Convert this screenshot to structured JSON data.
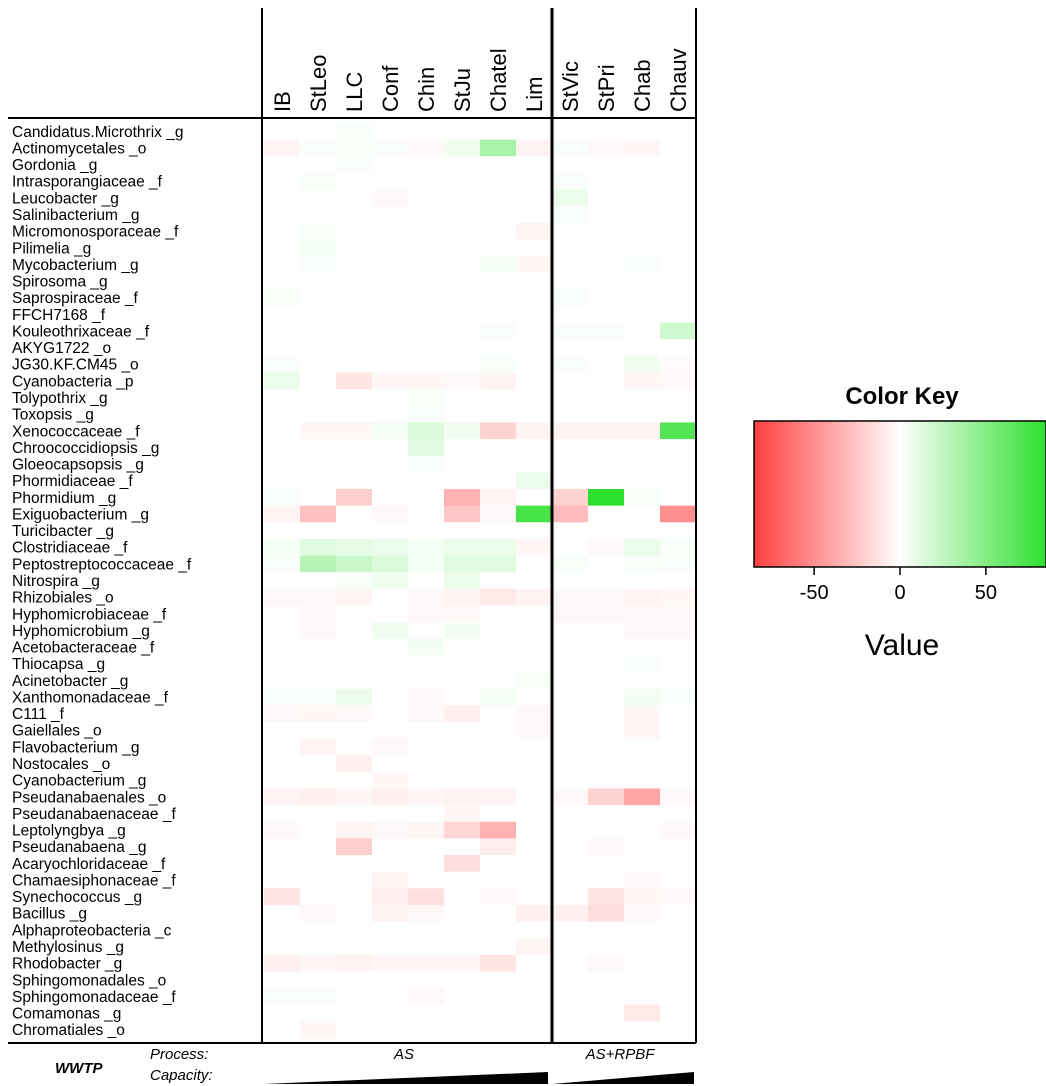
{
  "chart_data": {
    "type": "heatmap",
    "columns": [
      "IB",
      "StLeo",
      "LLC",
      "Conf",
      "Chin",
      "StJu",
      "Chatel",
      "Lim",
      "StVic",
      "StPri",
      "Chab",
      "Chauv"
    ],
    "rows": [
      "Candidatus.Microthrix _g",
      "Actinomycetales _o",
      "Gordonia _g",
      "Intrasporangiaceae _f",
      "Leucobacter _g",
      "Salinibacterium _g",
      "Micromonosporaceae _f",
      "Pilimelia _g",
      "Mycobacterium _g",
      "Spirosoma _g",
      "Saprospiraceae _f",
      "FFCH7168 _f",
      "Kouleothrixaceae _f",
      "AKYG1722 _o",
      "JG30.KF.CM45 _o",
      "Cyanobacteria _p",
      "Tolypothrix _g",
      "Toxopsis _g",
      "Xenococcaceae _f",
      "Chroococcidiopsis _g",
      "Gloeocapsopsis _g",
      "Phormidiaceae _f",
      "Phormidium _g",
      "Exiguobacterium _g",
      "Turicibacter _g",
      "Clostridiaceae _f",
      "Peptostreptococcaceae _f",
      "Nitrospira _g",
      "Rhizobiales _o",
      "Hyphomicrobiaceae _f",
      "Hyphomicrobium _g",
      "Acetobacteraceae _f",
      "Thiocapsa _g",
      "Acinetobacter _g",
      "Xanthomonadaceae _f",
      "C111 _f",
      "Gaiellales _o",
      "Flavobacterium _g",
      "Nostocales _o",
      "Cyanobacterium _g",
      "Pseudanabaenales _o",
      "Pseudanabaenaceae _f",
      "Leptolyngbya _g",
      "Pseudanabaena _g",
      "Acaryochloridaceae _f",
      "Chamaesiphonaceae _f",
      "Synechococcus _g",
      "Bacillus _g",
      "Alphaproteobacteria _c",
      "Methylosinus _g",
      "Rhodobacter _g",
      "Sphingomonadales _o",
      "Sphingomonadaceae _f",
      "Comamonas _g",
      "Chromatiales _o"
    ],
    "values": [
      [
        0,
        0,
        3,
        0,
        0,
        0,
        0,
        0,
        0,
        0,
        0,
        0
      ],
      [
        -5,
        2,
        3,
        2,
        -3,
        6,
        35,
        -6,
        2,
        -3,
        -4,
        0
      ],
      [
        0,
        0,
        2,
        0,
        0,
        0,
        0,
        0,
        0,
        0,
        0,
        0
      ],
      [
        0,
        3,
        0,
        0,
        0,
        0,
        0,
        0,
        2,
        0,
        0,
        0
      ],
      [
        0,
        0,
        0,
        -3,
        0,
        0,
        0,
        0,
        8,
        0,
        0,
        0
      ],
      [
        0,
        0,
        0,
        0,
        0,
        0,
        0,
        0,
        2,
        0,
        0,
        0
      ],
      [
        0,
        3,
        0,
        0,
        0,
        0,
        0,
        -5,
        0,
        0,
        0,
        0
      ],
      [
        0,
        4,
        0,
        0,
        0,
        0,
        0,
        0,
        0,
        0,
        0,
        0
      ],
      [
        0,
        2,
        0,
        0,
        0,
        0,
        4,
        -4,
        0,
        0,
        2,
        0
      ],
      [
        0,
        0,
        0,
        0,
        0,
        0,
        0,
        0,
        0,
        0,
        0,
        0
      ],
      [
        3,
        0,
        0,
        0,
        0,
        0,
        0,
        0,
        2,
        0,
        0,
        0
      ],
      [
        0,
        0,
        0,
        0,
        0,
        0,
        0,
        0,
        0,
        0,
        0,
        0
      ],
      [
        0,
        0,
        0,
        0,
        0,
        0,
        2,
        0,
        2,
        2,
        0,
        20
      ],
      [
        0,
        0,
        0,
        0,
        0,
        0,
        0,
        0,
        0,
        0,
        0,
        0
      ],
      [
        2,
        0,
        0,
        0,
        0,
        0,
        3,
        0,
        2,
        0,
        6,
        -2
      ],
      [
        8,
        0,
        -12,
        -4,
        -4,
        -3,
        -6,
        0,
        0,
        0,
        -4,
        -3
      ],
      [
        0,
        0,
        0,
        0,
        3,
        0,
        0,
        0,
        0,
        0,
        0,
        0
      ],
      [
        0,
        0,
        0,
        0,
        2,
        0,
        0,
        0,
        0,
        0,
        0,
        0
      ],
      [
        0,
        -4,
        -4,
        4,
        15,
        6,
        -20,
        -6,
        -6,
        -6,
        -6,
        70
      ],
      [
        0,
        0,
        0,
        0,
        12,
        0,
        0,
        0,
        0,
        0,
        0,
        0
      ],
      [
        0,
        0,
        0,
        0,
        2,
        0,
        0,
        0,
        0,
        0,
        0,
        0
      ],
      [
        0,
        0,
        0,
        0,
        0,
        0,
        0,
        8,
        0,
        0,
        0,
        0
      ],
      [
        2,
        0,
        -22,
        0,
        0,
        -35,
        -5,
        0,
        -20,
        85,
        3,
        0
      ],
      [
        -5,
        -28,
        0,
        -3,
        0,
        -25,
        -3,
        75,
        -30,
        0,
        0,
        -50
      ],
      [
        0,
        0,
        0,
        0,
        0,
        0,
        0,
        0,
        0,
        0,
        0,
        0
      ],
      [
        4,
        12,
        10,
        8,
        4,
        8,
        8,
        -4,
        0,
        -3,
        8,
        3
      ],
      [
        2,
        30,
        22,
        15,
        4,
        12,
        12,
        0,
        3,
        0,
        3,
        2
      ],
      [
        0,
        0,
        3,
        6,
        0,
        8,
        0,
        0,
        0,
        0,
        0,
        0
      ],
      [
        -3,
        -3,
        -5,
        0,
        -3,
        -6,
        -10,
        -6,
        -3,
        -3,
        -5,
        -4
      ],
      [
        0,
        -3,
        0,
        0,
        -3,
        -3,
        0,
        0,
        -3,
        -3,
        -3,
        -3
      ],
      [
        0,
        -3,
        0,
        6,
        0,
        5,
        0,
        0,
        0,
        0,
        -3,
        -3
      ],
      [
        0,
        0,
        0,
        0,
        5,
        0,
        0,
        0,
        0,
        0,
        0,
        0
      ],
      [
        0,
        0,
        0,
        0,
        0,
        0,
        0,
        0,
        0,
        0,
        2,
        0
      ],
      [
        0,
        0,
        0,
        0,
        0,
        0,
        0,
        3,
        0,
        0,
        0,
        0
      ],
      [
        2,
        2,
        8,
        0,
        -3,
        0,
        4,
        0,
        0,
        0,
        5,
        2
      ],
      [
        -3,
        -4,
        -3,
        0,
        -3,
        -7,
        0,
        -3,
        0,
        0,
        -4,
        0
      ],
      [
        0,
        0,
        0,
        0,
        0,
        0,
        0,
        -3,
        0,
        0,
        -4,
        0
      ],
      [
        0,
        -5,
        0,
        -3,
        0,
        0,
        0,
        0,
        0,
        0,
        0,
        0
      ],
      [
        0,
        0,
        -7,
        0,
        0,
        0,
        0,
        0,
        0,
        0,
        0,
        0
      ],
      [
        0,
        0,
        0,
        -4,
        0,
        0,
        0,
        0,
        0,
        0,
        0,
        0
      ],
      [
        -5,
        -7,
        -4,
        -7,
        -4,
        -6,
        -5,
        0,
        -3,
        -20,
        -40,
        -3
      ],
      [
        0,
        0,
        0,
        0,
        0,
        -4,
        0,
        0,
        0,
        0,
        0,
        0
      ],
      [
        -3,
        0,
        -5,
        -3,
        -4,
        -18,
        -35,
        0,
        0,
        0,
        0,
        -3
      ],
      [
        0,
        0,
        -22,
        0,
        0,
        0,
        -8,
        0,
        0,
        -3,
        0,
        0
      ],
      [
        0,
        0,
        0,
        0,
        0,
        -15,
        0,
        0,
        0,
        0,
        0,
        0
      ],
      [
        0,
        0,
        0,
        -5,
        0,
        0,
        0,
        0,
        0,
        0,
        -3,
        0
      ],
      [
        -12,
        0,
        0,
        -8,
        -14,
        0,
        -3,
        0,
        0,
        -12,
        -4,
        -3
      ],
      [
        0,
        -3,
        0,
        -6,
        -3,
        0,
        0,
        -7,
        -7,
        -15,
        -3,
        0
      ],
      [
        0,
        0,
        0,
        0,
        0,
        0,
        0,
        0,
        0,
        0,
        0,
        0
      ],
      [
        0,
        0,
        0,
        0,
        0,
        0,
        0,
        -5,
        0,
        0,
        0,
        0
      ],
      [
        -7,
        -4,
        -6,
        -4,
        -4,
        -4,
        -12,
        0,
        0,
        -3,
        0,
        0
      ],
      [
        0,
        0,
        0,
        0,
        0,
        0,
        0,
        0,
        0,
        0,
        0,
        0
      ],
      [
        2,
        2,
        0,
        0,
        -3,
        0,
        0,
        0,
        0,
        0,
        0,
        0
      ],
      [
        0,
        0,
        0,
        0,
        0,
        0,
        0,
        0,
        0,
        0,
        -10,
        0
      ],
      [
        0,
        -4,
        0,
        0,
        0,
        0,
        0,
        0,
        0,
        0,
        0,
        0
      ]
    ],
    "groups": [
      {
        "label": "AS",
        "columns": [
          "IB",
          "StLeo",
          "LLC",
          "Conf",
          "Chin",
          "StJu",
          "Chatel",
          "Lim"
        ]
      },
      {
        "label": "AS+RPBF",
        "columns": [
          "StVic",
          "StPri",
          "Chab",
          "Chauv"
        ]
      }
    ],
    "color_scale": {
      "min": -85,
      "mid": 0,
      "max": 85,
      "low_color": "#ff4040",
      "mid_color": "#ffffff",
      "high_color": "#2ee02e"
    },
    "key": {
      "title": "Color Key",
      "xlabel": "Value",
      "ticks": [
        "-50",
        "0",
        "50"
      ],
      "tick_values": [
        -50,
        0,
        50
      ]
    },
    "footer": {
      "wwtp_label": "WWTP",
      "process_label": "Process:",
      "capacity_label": "Capacity:",
      "group1_label": "AS",
      "group2_label": "AS+RPBF"
    }
  }
}
